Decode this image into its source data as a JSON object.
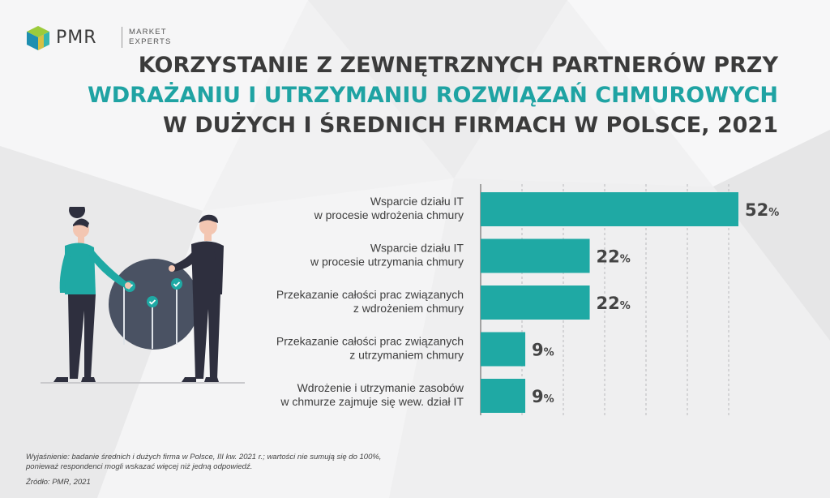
{
  "logo": {
    "name": "PMR",
    "tagline_line1": "MARKET",
    "tagline_line2": "EXPERTS"
  },
  "title": {
    "line1": "KORZYSTANIE Z ZEWNĘTRZNYCH PARTNERÓW PRZY",
    "line2": "WDRAŻANIU I UTRZYMANIU ROZWIĄZAŃ CHMUROWYCH",
    "line3": "W DUŻYCH I ŚREDNICH FIRMACH W POLSCE, 2021"
  },
  "colors": {
    "bar": "#1fa9a4",
    "title_accent": "#1fa3a3",
    "title_dark": "#3b3b3b",
    "figure_teal": "#1fa9a4",
    "figure_dark": "#2e2f3e",
    "circle": "#4a5263"
  },
  "chart_data": {
    "type": "bar",
    "orientation": "horizontal",
    "categories": [
      [
        "Wsparcie działu IT",
        "w procesie wdrożenia chmury"
      ],
      [
        "Wsparcie działu IT",
        "w procesie utrzymania chmury"
      ],
      [
        "Przekazanie całości prac związanych",
        "z wdrożeniem chmury"
      ],
      [
        "Przekazanie całości prac związanych",
        "z utrzymaniem chmury"
      ],
      [
        "Wdrożenie i utrzymanie zasobów",
        "w chmurze zajmuje się wew. dział IT"
      ]
    ],
    "values": [
      52,
      22,
      22,
      9,
      9
    ],
    "value_suffix": "%",
    "xlim": [
      0,
      52
    ],
    "grid": true
  },
  "footnote": {
    "line1": "Wyjaśnienie: badanie średnich i dużych firma w Polsce, III kw. 2021 r.; wartości nie sumują się do 100%,",
    "line2": "ponieważ respondenci mogli wskazać więcej niż jedną odpowiedź.",
    "source": "Źródło: PMR, 2021"
  },
  "illustration": {
    "icon": "people-with-checklist-circle-illustration"
  }
}
